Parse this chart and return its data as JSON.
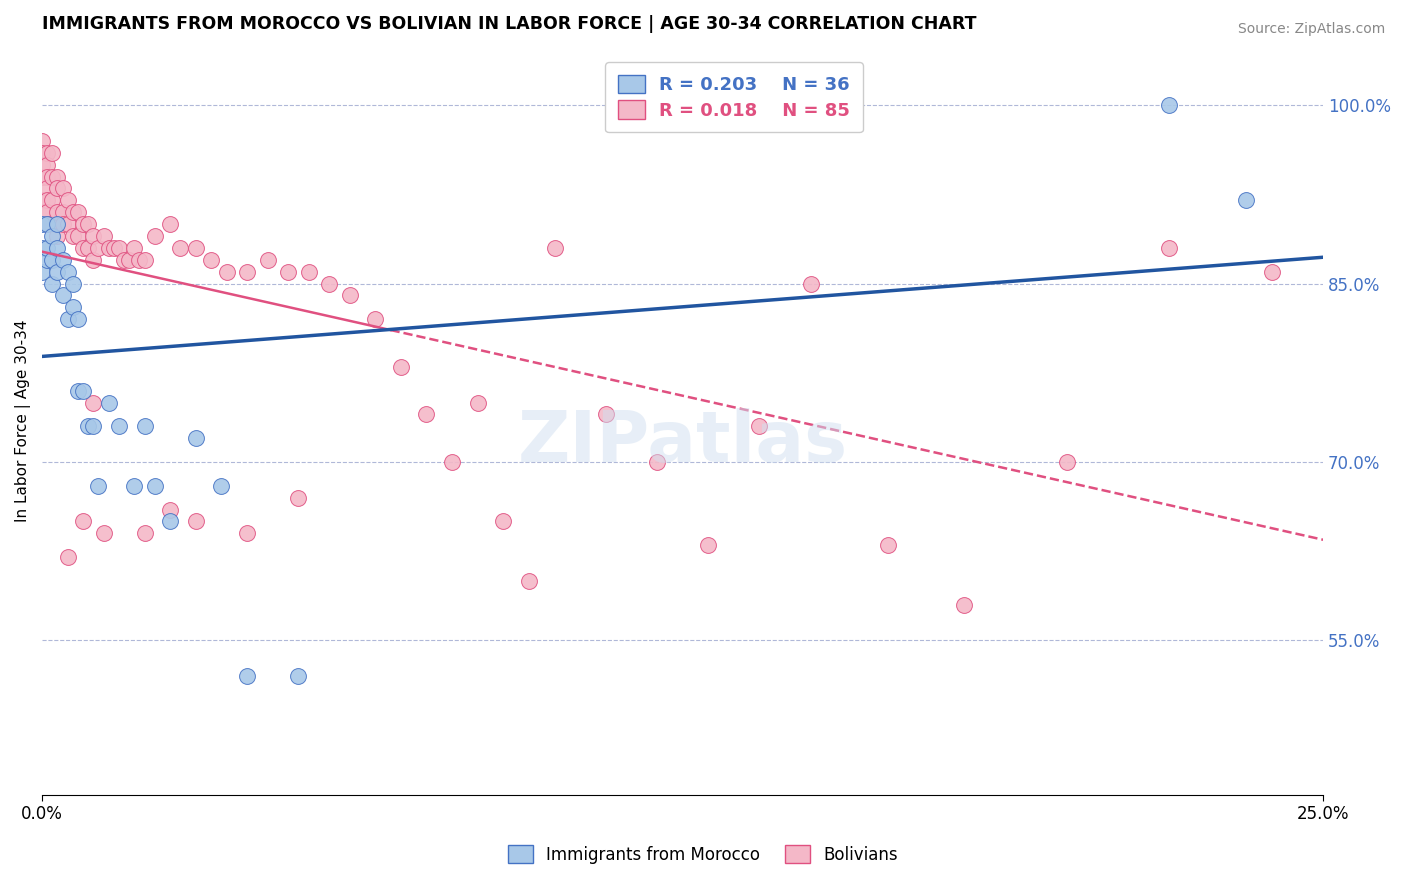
{
  "title": "IMMIGRANTS FROM MOROCCO VS BOLIVIAN IN LABOR FORCE | AGE 30-34 CORRELATION CHART",
  "source": "Source: ZipAtlas.com",
  "ylabel": "In Labor Force | Age 30-34",
  "xlim": [
    0.0,
    0.25
  ],
  "ylim": [
    0.42,
    1.05
  ],
  "yticks": [
    0.55,
    0.7,
    0.85,
    1.0
  ],
  "legend1_r": "0.203",
  "legend1_n": "36",
  "legend2_r": "0.018",
  "legend2_n": "85",
  "blue_fill": "#a8c8e8",
  "blue_edge": "#4472c4",
  "pink_fill": "#f4b8c8",
  "pink_edge": "#e05080",
  "blue_line": "#2155a0",
  "pink_line": "#e05080",
  "morocco_x": [
    0.0,
    0.0,
    0.0,
    0.001,
    0.001,
    0.001,
    0.002,
    0.002,
    0.002,
    0.003,
    0.003,
    0.003,
    0.004,
    0.004,
    0.005,
    0.005,
    0.006,
    0.006,
    0.007,
    0.007,
    0.008,
    0.009,
    0.01,
    0.011,
    0.013,
    0.015,
    0.018,
    0.02,
    0.022,
    0.025,
    0.03,
    0.035,
    0.04,
    0.05,
    0.22,
    0.235
  ],
  "morocco_y": [
    0.86,
    0.88,
    0.9,
    0.87,
    0.88,
    0.9,
    0.85,
    0.87,
    0.89,
    0.86,
    0.88,
    0.9,
    0.84,
    0.87,
    0.82,
    0.86,
    0.83,
    0.85,
    0.76,
    0.82,
    0.76,
    0.73,
    0.73,
    0.68,
    0.75,
    0.73,
    0.68,
    0.73,
    0.68,
    0.65,
    0.72,
    0.68,
    0.52,
    0.52,
    1.0,
    0.92
  ],
  "bolivian_x": [
    0.0,
    0.0,
    0.0,
    0.0,
    0.0,
    0.0,
    0.001,
    0.001,
    0.001,
    0.001,
    0.001,
    0.001,
    0.001,
    0.002,
    0.002,
    0.002,
    0.002,
    0.003,
    0.003,
    0.003,
    0.003,
    0.004,
    0.004,
    0.004,
    0.005,
    0.005,
    0.006,
    0.006,
    0.007,
    0.007,
    0.008,
    0.008,
    0.009,
    0.009,
    0.01,
    0.01,
    0.011,
    0.012,
    0.013,
    0.014,
    0.015,
    0.016,
    0.017,
    0.018,
    0.019,
    0.02,
    0.022,
    0.025,
    0.027,
    0.03,
    0.033,
    0.036,
    0.04,
    0.044,
    0.048,
    0.052,
    0.056,
    0.06,
    0.065,
    0.07,
    0.075,
    0.08,
    0.085,
    0.09,
    0.095,
    0.1,
    0.11,
    0.12,
    0.13,
    0.14,
    0.15,
    0.165,
    0.18,
    0.2,
    0.22,
    0.24,
    0.01,
    0.005,
    0.008,
    0.012,
    0.02,
    0.025,
    0.03,
    0.04,
    0.05
  ],
  "bolivian_y": [
    0.97,
    0.96,
    0.95,
    0.94,
    0.92,
    0.91,
    0.96,
    0.95,
    0.94,
    0.93,
    0.92,
    0.91,
    0.9,
    0.96,
    0.94,
    0.92,
    0.9,
    0.94,
    0.93,
    0.91,
    0.89,
    0.93,
    0.91,
    0.9,
    0.92,
    0.9,
    0.91,
    0.89,
    0.91,
    0.89,
    0.9,
    0.88,
    0.9,
    0.88,
    0.89,
    0.87,
    0.88,
    0.89,
    0.88,
    0.88,
    0.88,
    0.87,
    0.87,
    0.88,
    0.87,
    0.87,
    0.89,
    0.9,
    0.88,
    0.88,
    0.87,
    0.86,
    0.86,
    0.87,
    0.86,
    0.86,
    0.85,
    0.84,
    0.82,
    0.78,
    0.74,
    0.7,
    0.75,
    0.65,
    0.6,
    0.88,
    0.74,
    0.7,
    0.63,
    0.73,
    0.85,
    0.63,
    0.58,
    0.7,
    0.88,
    0.86,
    0.75,
    0.62,
    0.65,
    0.64,
    0.64,
    0.66,
    0.65,
    0.64,
    0.67
  ]
}
